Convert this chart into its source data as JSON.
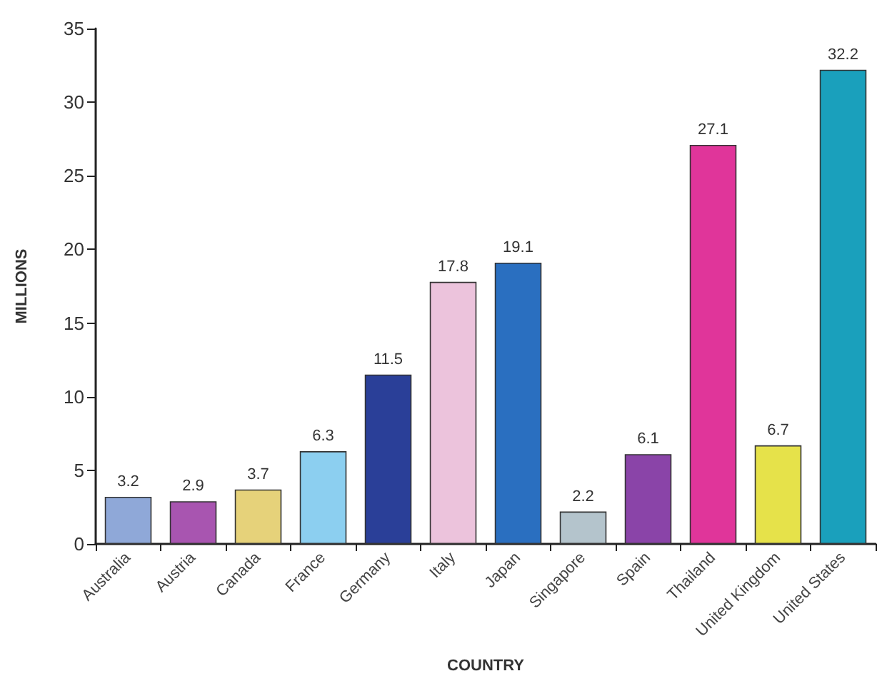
{
  "chart_data": {
    "type": "bar",
    "xlabel": "COUNTRY",
    "ylabel": "MILLIONS",
    "categories": [
      "Australia",
      "Austria",
      "Canada",
      "France",
      "Germany",
      "Italy",
      "Japan",
      "Singapore",
      "Spain",
      "Thailand",
      "United Kingdom",
      "United States"
    ],
    "values": [
      3.2,
      2.9,
      3.7,
      6.3,
      11.5,
      17.8,
      19.1,
      2.2,
      6.1,
      27.1,
      6.7,
      32.2
    ],
    "colors": [
      "#8fa8d8",
      "#a855b0",
      "#e6d27a",
      "#8ccff0",
      "#2a3f98",
      "#ecc3dc",
      "#2a6fc0",
      "#b4c4cc",
      "#8a44a8",
      "#e0359a",
      "#e6e24a",
      "#1aa0bc"
    ],
    "ylim": [
      0,
      35
    ],
    "yticks": [
      0,
      5,
      10,
      15,
      20,
      25,
      30,
      35
    ],
    "grid": false,
    "data_labels": true
  }
}
